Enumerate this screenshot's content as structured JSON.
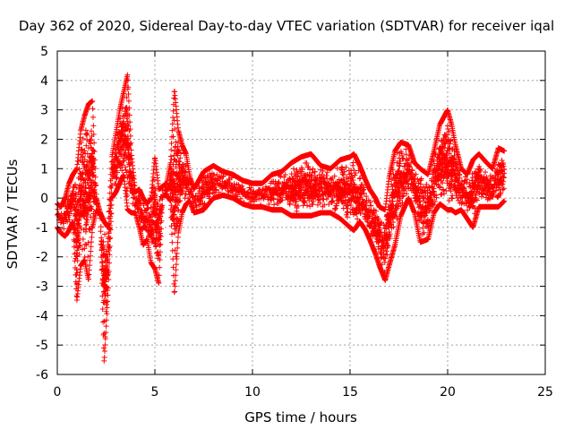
{
  "chart_data": {
    "type": "scatter",
    "title": "Day 362 of 2020, Sidereal Day-to-day VTEC variation (SDTVAR) for receiver iqal",
    "xlabel": "GPS time / hours",
    "ylabel": "SDTVAR / TECUs",
    "xlim": [
      0,
      25
    ],
    "ylim": [
      -6,
      5
    ],
    "xticks": [
      0,
      5,
      10,
      15,
      20,
      25
    ],
    "yticks": [
      -6,
      -5,
      -4,
      -3,
      -2,
      -1,
      0,
      1,
      2,
      3,
      4,
      5
    ],
    "grid": true,
    "marker": "+",
    "series_color": "#ff0000",
    "envelope": {
      "x": [
        0.0,
        0.2,
        0.4,
        0.6,
        0.8,
        1.0,
        1.2,
        1.4,
        1.6,
        1.8,
        2.0,
        2.2,
        2.4,
        2.6,
        2.8,
        3.0,
        3.2,
        3.4,
        3.6,
        3.8,
        4.0,
        4.2,
        4.4,
        4.6,
        4.8,
        5.0,
        5.2,
        5.4,
        5.6,
        5.8,
        6.0,
        6.2,
        6.4,
        6.6,
        6.8,
        7.0,
        7.5,
        8.0,
        8.5,
        9.0,
        9.5,
        10.0,
        10.5,
        11.0,
        11.5,
        12.0,
        12.5,
        13.0,
        13.5,
        14.0,
        14.5,
        15.0,
        15.2,
        15.5,
        15.8,
        16.0,
        16.3,
        16.5,
        16.8,
        17.0,
        17.3,
        17.6,
        18.0,
        18.3,
        18.6,
        19.0,
        19.3,
        19.6,
        20.0,
        20.2,
        20.4,
        20.7,
        21.0,
        21.3,
        21.6,
        22.0,
        22.3,
        22.6,
        22.9
      ],
      "min": [
        -1.0,
        -1.2,
        -1.3,
        -1.1,
        -0.8,
        -3.5,
        -2.3,
        -2.1,
        -2.8,
        -1.0,
        -0.4,
        -0.6,
        -5.6,
        -3.2,
        0.0,
        0.2,
        0.5,
        0.8,
        -0.4,
        -0.5,
        -0.5,
        -1.0,
        -1.6,
        -1.4,
        -2.2,
        -2.4,
        -2.9,
        0.1,
        0.1,
        -0.1,
        -3.3,
        -1.2,
        -0.5,
        -0.2,
        -0.1,
        -0.5,
        -0.4,
        0.0,
        0.1,
        0.0,
        -0.2,
        -0.3,
        -0.3,
        -0.4,
        -0.4,
        -0.6,
        -0.6,
        -0.6,
        -0.5,
        -0.5,
        -0.7,
        -1.0,
        -1.1,
        -0.8,
        -1.1,
        -1.4,
        -1.9,
        -2.3,
        -2.8,
        -2.3,
        -1.6,
        -0.6,
        0.0,
        -0.5,
        -1.5,
        -1.4,
        -0.5,
        -0.2,
        -0.4,
        -0.4,
        -0.5,
        -0.4,
        -0.7,
        -1.0,
        -0.3,
        -0.3,
        -0.3,
        -0.3,
        -0.1
      ],
      "max": [
        -0.2,
        -0.3,
        0.0,
        0.5,
        0.8,
        1.0,
        2.3,
        2.8,
        3.2,
        3.3,
        0.0,
        -0.5,
        -0.8,
        -1.0,
        1.4,
        2.2,
        3.0,
        3.6,
        4.2,
        1.5,
        0.2,
        0.3,
        0.0,
        -0.2,
        0.0,
        1.4,
        0.3,
        0.4,
        0.5,
        1.2,
        3.7,
        2.3,
        1.8,
        1.5,
        0.7,
        0.3,
        0.9,
        1.1,
        0.9,
        0.8,
        0.6,
        0.5,
        0.5,
        0.8,
        0.9,
        1.2,
        1.4,
        1.5,
        1.1,
        1.0,
        1.3,
        1.4,
        1.5,
        1.1,
        0.6,
        0.3,
        0.0,
        -0.3,
        -0.4,
        0.7,
        1.6,
        1.9,
        1.8,
        1.2,
        1.0,
        0.8,
        1.6,
        2.5,
        3.0,
        2.5,
        1.8,
        1.0,
        0.8,
        1.3,
        1.5,
        1.2,
        1.0,
        1.7,
        1.6
      ]
    }
  },
  "axes": {
    "x_tick_labels": [
      "0",
      "5",
      "10",
      "15",
      "20",
      "25"
    ],
    "y_tick_labels": [
      "-6",
      "-5",
      "-4",
      "-3",
      "-2",
      "-1",
      "0",
      "1",
      "2",
      "3",
      "4",
      "5"
    ]
  }
}
